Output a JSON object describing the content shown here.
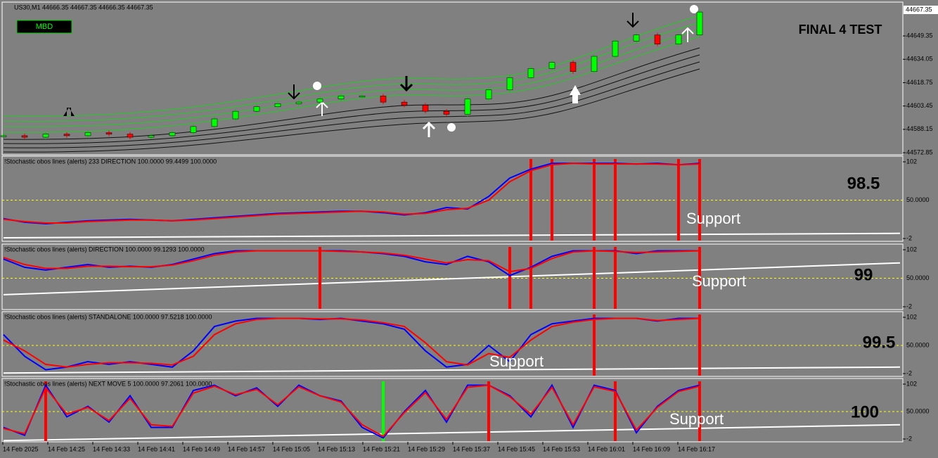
{
  "main": {
    "symbol": "US30,M1  44666.35 44667.35 44666.35 44667.35",
    "button": "MBD",
    "label": "FINAL 4 TEST",
    "last_price": "44667.35",
    "ylim": [
      44571.5,
      44671.5
    ],
    "price_ticks": [
      44649.35,
      44634.05,
      44618.75,
      44603.45,
      44588.15,
      44572.85
    ],
    "close": [
      44584,
      44583,
      44585,
      44584,
      44586,
      44585,
      44583,
      44584,
      44586,
      44590,
      44595,
      44600,
      44603,
      44605,
      44606,
      44608,
      44610,
      44610,
      44606,
      44604,
      44600,
      44598,
      44608,
      44614,
      44622,
      44628,
      44632,
      44626,
      44636,
      44646,
      44650,
      44644,
      44650,
      44665
    ]
  },
  "panels": [
    {
      "header": "!Stochastic obos lines (alerts) 233 DIRECTION 100.0000 99.4499 100.0000",
      "level": "98.5",
      "support": "Support",
      "ticks": [
        {
          "value": 102,
          "label": "102"
        },
        {
          "value": 50,
          "label": "50.0000"
        },
        {
          "value": -2,
          "label": "-2"
        }
      ],
      "blue": [
        25,
        20,
        18,
        20,
        22,
        23,
        24,
        23,
        22,
        24,
        26,
        28,
        30,
        32,
        33,
        34,
        35,
        35,
        33,
        30,
        33,
        40,
        38,
        55,
        80,
        92,
        100,
        100,
        100,
        100,
        99,
        100,
        98,
        100
      ],
      "red": [
        24,
        21,
        19,
        19,
        21,
        22,
        23,
        23,
        22,
        23,
        25,
        27,
        29,
        31,
        32,
        33,
        34,
        35,
        34,
        31,
        32,
        37,
        39,
        50,
        75,
        90,
        98,
        100,
        99,
        99,
        99,
        99,
        98,
        99
      ],
      "alerts_red": [
        25,
        26,
        28,
        29,
        32,
        33
      ],
      "alerts_green": [],
      "support_line": [
        -1,
        5
      ]
    },
    {
      "header": "!Stochastic obos lines (alerts) DIRECTION 100.0000 99.1293 100.0000",
      "level": "99",
      "support": "Support",
      "ticks": [
        {
          "value": 102,
          "label": "102"
        },
        {
          "value": 50,
          "label": "50.0000"
        },
        {
          "value": -2,
          "label": "-2"
        }
      ],
      "blue": [
        85,
        70,
        65,
        70,
        75,
        70,
        72,
        70,
        75,
        85,
        95,
        100,
        100,
        100,
        100,
        100,
        100,
        98,
        95,
        90,
        80,
        75,
        90,
        80,
        55,
        70,
        90,
        100,
        100,
        100,
        95,
        100,
        100,
        100
      ],
      "red": [
        88,
        75,
        68,
        68,
        72,
        72,
        71,
        71,
        74,
        82,
        92,
        98,
        100,
        100,
        100,
        100,
        99,
        98,
        96,
        92,
        85,
        78,
        84,
        82,
        62,
        68,
        86,
        98,
        100,
        99,
        97,
        98,
        99,
        100
      ],
      "alerts_red": [
        15,
        24,
        25,
        28,
        29,
        33
      ],
      "alerts_green": [],
      "support_line": [
        20,
        78
      ]
    },
    {
      "header": "!Stochastic obos lines (alerts) STANDALONE 100.0000 97.5218 100.0000",
      "level": "99.5",
      "support": "Support",
      "ticks": [
        {
          "value": 102,
          "label": "102"
        },
        {
          "value": 50,
          "label": "50.0000"
        },
        {
          "value": -2,
          "label": "-2"
        }
      ],
      "blue": [
        70,
        30,
        5,
        10,
        20,
        15,
        20,
        15,
        10,
        40,
        85,
        95,
        100,
        100,
        100,
        98,
        100,
        95,
        90,
        80,
        40,
        10,
        15,
        50,
        20,
        70,
        90,
        95,
        100,
        100,
        100,
        95,
        100,
        100
      ],
      "red": [
        60,
        40,
        15,
        10,
        15,
        18,
        18,
        17,
        14,
        30,
        70,
        90,
        98,
        100,
        100,
        99,
        99,
        97,
        92,
        85,
        55,
        20,
        14,
        35,
        28,
        60,
        85,
        93,
        98,
        100,
        100,
        96,
        98,
        100
      ],
      "alerts_red": [
        28,
        33
      ],
      "alerts_green": [],
      "support_line": [
        -1,
        10
      ]
    },
    {
      "header": "!Stochastic obos lines (alerts) NEXT MOVE 5 100.0000 97.2061 100.0000",
      "level": "100",
      "support": "Support",
      "ticks": [
        {
          "value": 102,
          "label": "102"
        },
        {
          "value": 50,
          "label": "50.0000"
        },
        {
          "value": -2,
          "label": "-2"
        }
      ],
      "blue": [
        20,
        5,
        100,
        40,
        60,
        30,
        80,
        20,
        20,
        90,
        100,
        80,
        95,
        60,
        100,
        80,
        70,
        20,
        0,
        50,
        90,
        30,
        100,
        100,
        80,
        40,
        100,
        20,
        100,
        90,
        10,
        60,
        90,
        100
      ],
      "red": [
        18,
        8,
        95,
        45,
        58,
        33,
        75,
        25,
        22,
        85,
        98,
        82,
        92,
        63,
        97,
        80,
        68,
        25,
        3,
        48,
        86,
        35,
        96,
        100,
        78,
        45,
        96,
        25,
        97,
        88,
        15,
        58,
        88,
        98
      ],
      "alerts_red": [
        2,
        23,
        29,
        33
      ],
      "alerts_green": [
        18
      ],
      "support_line": [
        -5,
        25
      ]
    }
  ],
  "time_labels": [
    "14 Feb 2025",
    "14 Feb 14:25",
    "14 Feb 14:33",
    "14 Feb 14:41",
    "14 Feb 14:49",
    "14 Feb 14:57",
    "14 Feb 15:05",
    "14 Feb 15:13",
    "14 Feb 15:21",
    "14 Feb 15:29",
    "14 Feb 15:37",
    "14 Feb 15:45",
    "14 Feb 15:53",
    "14 Feb 16:01",
    "14 Feb 16:09",
    "14 Feb 16:17"
  ]
}
